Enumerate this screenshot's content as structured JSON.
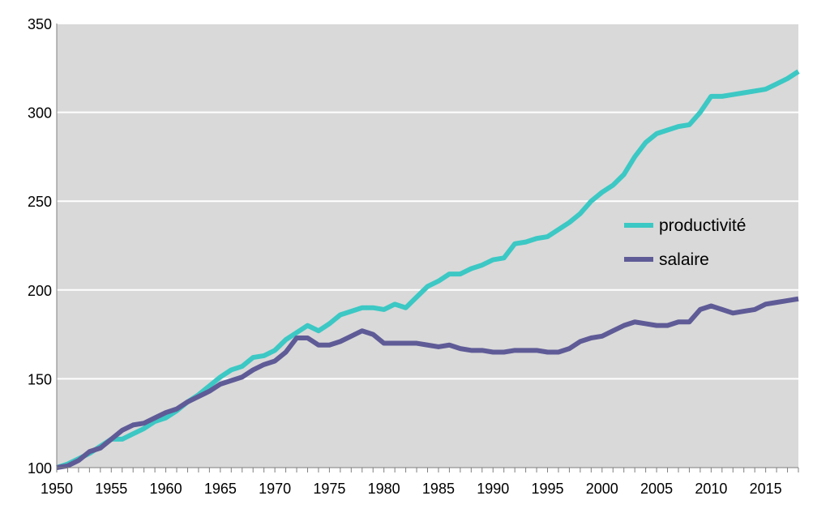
{
  "chart_data": {
    "type": "line",
    "title": "",
    "xlabel": "",
    "ylabel": "",
    "xlim": [
      1950,
      2018
    ],
    "ylim": [
      100,
      350
    ],
    "y_ticks": [
      100,
      150,
      200,
      250,
      300,
      350
    ],
    "x_ticks": [
      1950,
      1955,
      1960,
      1965,
      1970,
      1975,
      1980,
      1985,
      1990,
      1995,
      2000,
      2005,
      2010,
      2015
    ],
    "grid": "horizontal",
    "legend_position": "right",
    "background": "#d9d9d9",
    "x": [
      1950,
      1951,
      1952,
      1953,
      1954,
      1955,
      1956,
      1957,
      1958,
      1959,
      1960,
      1961,
      1962,
      1963,
      1964,
      1965,
      1966,
      1967,
      1968,
      1969,
      1970,
      1971,
      1972,
      1973,
      1974,
      1975,
      1976,
      1977,
      1978,
      1979,
      1980,
      1981,
      1982,
      1983,
      1984,
      1985,
      1986,
      1987,
      1988,
      1989,
      1990,
      1991,
      1992,
      1993,
      1994,
      1995,
      1996,
      1997,
      1998,
      1999,
      2000,
      2001,
      2002,
      2003,
      2004,
      2005,
      2006,
      2007,
      2008,
      2009,
      2010,
      2011,
      2012,
      2013,
      2014,
      2015,
      2016,
      2017,
      2018
    ],
    "series": [
      {
        "name": "productivité",
        "color": "#3cc8c4",
        "values": [
          100,
          102,
          105,
          108,
          112,
          116,
          116,
          119,
          122,
          126,
          128,
          132,
          137,
          141,
          146,
          151,
          155,
          157,
          162,
          163,
          166,
          172,
          176,
          180,
          177,
          181,
          186,
          188,
          190,
          190,
          189,
          192,
          190,
          196,
          202,
          205,
          209,
          209,
          212,
          214,
          217,
          218,
          226,
          227,
          229,
          230,
          234,
          238,
          243,
          250,
          255,
          259,
          265,
          275,
          283,
          288,
          290,
          292,
          293,
          300,
          309,
          309,
          310,
          311,
          312,
          313,
          316,
          319,
          323
        ]
      },
      {
        "name": "salaire",
        "color": "#5f5b97",
        "values": [
          100,
          101,
          104,
          109,
          111,
          116,
          121,
          124,
          125,
          128,
          131,
          133,
          137,
          140,
          143,
          147,
          149,
          151,
          155,
          158,
          160,
          165,
          173,
          173,
          169,
          169,
          171,
          174,
          177,
          175,
          170,
          170,
          170,
          170,
          169,
          168,
          169,
          167,
          166,
          166,
          165,
          165,
          166,
          166,
          166,
          165,
          165,
          167,
          171,
          173,
          174,
          177,
          180,
          182,
          181,
          180,
          180,
          182,
          182,
          189,
          191,
          189,
          187,
          188,
          189,
          192,
          193,
          194,
          195
        ]
      }
    ]
  }
}
